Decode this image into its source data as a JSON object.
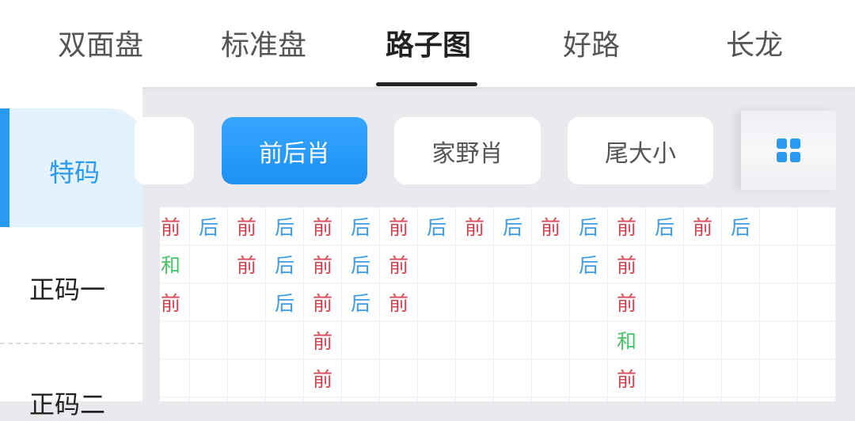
{
  "tabs": [
    {
      "label": "双面盘"
    },
    {
      "label": "标准盘"
    },
    {
      "label": "路子图",
      "active": true
    },
    {
      "label": "好路"
    },
    {
      "label": "长龙"
    }
  ],
  "sidebar": {
    "items": [
      {
        "label": "特码",
        "active": true
      },
      {
        "label": "正码一"
      },
      {
        "label": "正码二"
      }
    ]
  },
  "subtabs": [
    {
      "label": ""
    },
    {
      "label": "前后肖",
      "active": true
    },
    {
      "label": "家野肖"
    },
    {
      "label": "尾大小"
    }
  ],
  "grid_icon": "grid-icon",
  "colors": {
    "accent": "#2a9af0",
    "前": "#d9434f",
    "后": "#3b9be8",
    "和": "#4cc06a"
  },
  "board": {
    "columns": [
      [
        "前",
        "和",
        "前"
      ],
      [
        "后"
      ],
      [
        "前",
        "前"
      ],
      [
        "后",
        "后",
        "后"
      ],
      [
        "前",
        "前",
        "前",
        "前",
        "前"
      ],
      [
        "后",
        "后",
        "后"
      ],
      [
        "前",
        "前",
        "前"
      ],
      [
        "后"
      ],
      [
        "前"
      ],
      [
        "后"
      ],
      [
        "前"
      ],
      [
        "后",
        "后"
      ],
      [
        "前",
        "前",
        "前",
        "和",
        "前"
      ],
      [
        "后"
      ],
      [
        "前"
      ],
      [
        "后"
      ],
      [],
      []
    ]
  }
}
